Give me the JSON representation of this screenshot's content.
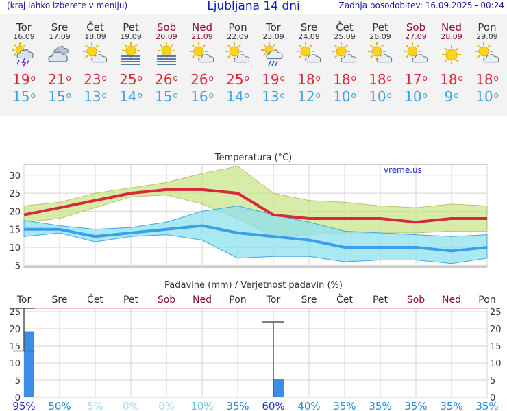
{
  "header": {
    "left_note": "(kraj lahko izberete v meniju)",
    "title": "Ljubljana 14 dni",
    "updated": "Zadnja posodobitev: 16.09.2025 - 00:24"
  },
  "days": [
    {
      "name": "Tor",
      "date": "16.09",
      "weekend": false,
      "icon": "thunder-rain-icon",
      "tmax": "19",
      "tmin": "15"
    },
    {
      "name": "Sre",
      "date": "17.09",
      "weekend": false,
      "icon": "cloudy-icon",
      "tmax": "21",
      "tmin": "15"
    },
    {
      "name": "Čet",
      "date": "18.09",
      "weekend": false,
      "icon": "partly-cloudy-icon",
      "tmax": "23",
      "tmin": "13"
    },
    {
      "name": "Pet",
      "date": "19.09",
      "weekend": false,
      "icon": "sun-fog-icon",
      "tmax": "25",
      "tmin": "14"
    },
    {
      "name": "Sob",
      "date": "20.09",
      "weekend": true,
      "icon": "sun-fog-icon",
      "tmax": "26",
      "tmin": "15"
    },
    {
      "name": "Ned",
      "date": "21.09",
      "weekend": true,
      "icon": "partly-cloudy-icon",
      "tmax": "26",
      "tmin": "16"
    },
    {
      "name": "Pon",
      "date": "22.09",
      "weekend": false,
      "icon": "partly-cloudy-icon",
      "tmax": "25",
      "tmin": "14"
    },
    {
      "name": "Tor",
      "date": "23.09",
      "weekend": false,
      "icon": "sun-rain-icon",
      "tmax": "19",
      "tmin": "13"
    },
    {
      "name": "Sre",
      "date": "24.09",
      "weekend": false,
      "icon": "partly-cloudy-icon",
      "tmax": "18",
      "tmin": "12"
    },
    {
      "name": "Čet",
      "date": "25.09",
      "weekend": false,
      "icon": "partly-cloudy-icon",
      "tmax": "18",
      "tmin": "10"
    },
    {
      "name": "Pet",
      "date": "26.09",
      "weekend": false,
      "icon": "partly-cloudy-icon",
      "tmax": "18",
      "tmin": "10"
    },
    {
      "name": "Sob",
      "date": "27.09",
      "weekend": true,
      "icon": "partly-cloudy-icon",
      "tmax": "17",
      "tmin": "10"
    },
    {
      "name": "Ned",
      "date": "28.09",
      "weekend": true,
      "icon": "sun-icon",
      "tmax": "18",
      "tmin": "9"
    },
    {
      "name": "Pon",
      "date": "29.09",
      "weekend": false,
      "icon": "partly-cloudy-icon",
      "tmax": "18",
      "tmin": "10"
    }
  ],
  "colors": {
    "tmax": "#d8283c",
    "tmin": "#3ea0e6",
    "weekend": "#8b0a3a",
    "max_band": "#c8e68a",
    "min_band": "#8ee0ee",
    "min_line": "#3a9ee8",
    "bars": "#3a8ee8"
  },
  "chart_data": [
    {
      "type": "line",
      "title": "Temperatura (°C)",
      "watermark": "vreme.us",
      "categories": [
        "Tor",
        "Sre",
        "Čet",
        "Pet",
        "Sob",
        "Ned",
        "Pon",
        "Tor",
        "Sre",
        "Čet",
        "Pet",
        "Sob",
        "Ned",
        "Pon"
      ],
      "yticks": [
        5,
        10,
        15,
        20,
        25,
        30
      ],
      "ylim": [
        4.5,
        33
      ],
      "grid": true,
      "series": [
        {
          "values": [
            19,
            21,
            23,
            25,
            26,
            26,
            25,
            19,
            18,
            18,
            18,
            17,
            18,
            18
          ]
        },
        {
          "values": [
            15,
            15,
            13,
            14,
            15,
            16,
            14,
            13,
            12,
            10,
            10,
            10,
            9,
            10
          ]
        }
      ],
      "max_band_upper": [
        21.5,
        22.5,
        25,
        26.5,
        28,
        30.5,
        32.5,
        25,
        23,
        22.5,
        21.5,
        21,
        22,
        21.5
      ],
      "max_band_lower": [
        17,
        18,
        21,
        24,
        24.5,
        22,
        18,
        13,
        13.5,
        14,
        14,
        14,
        14.5,
        14.5
      ],
      "min_band_upper": [
        17.5,
        16,
        15,
        15.5,
        17,
        20,
        21.5,
        19,
        17,
        14.5,
        14,
        13.5,
        13,
        13.5
      ],
      "min_band_lower": [
        13,
        14,
        11.5,
        13,
        13.5,
        12,
        7,
        7.5,
        7.5,
        6,
        6.5,
        6.5,
        5.5,
        7
      ]
    },
    {
      "type": "bar",
      "title": "Padavine (mm) / Verjetnost padavin (%)",
      "categories": [
        "Tor",
        "Sre",
        "Čet",
        "Pet",
        "Sob",
        "Ned",
        "Pon",
        "Tor",
        "Sre",
        "Čet",
        "Pet",
        "Sob",
        "Ned",
        "Pon"
      ],
      "yticks": [
        0,
        5,
        10,
        15,
        20,
        25
      ],
      "ylim": [
        0,
        26
      ],
      "values": [
        19.3,
        0,
        0,
        0,
        0,
        0,
        0,
        5.3,
        0,
        0,
        0,
        0,
        0,
        0
      ],
      "error_ranges": [
        [
          13.5,
          26
        ],
        null,
        null,
        null,
        null,
        null,
        null,
        [
          0,
          22
        ],
        null,
        null,
        null,
        null,
        null,
        null
      ],
      "probability": [
        "95%",
        "50%",
        "5%",
        "0%",
        "0%",
        "10%",
        "35%",
        "60%",
        "40%",
        "35%",
        "35%",
        "35%",
        "35%",
        "35%"
      ]
    }
  ]
}
